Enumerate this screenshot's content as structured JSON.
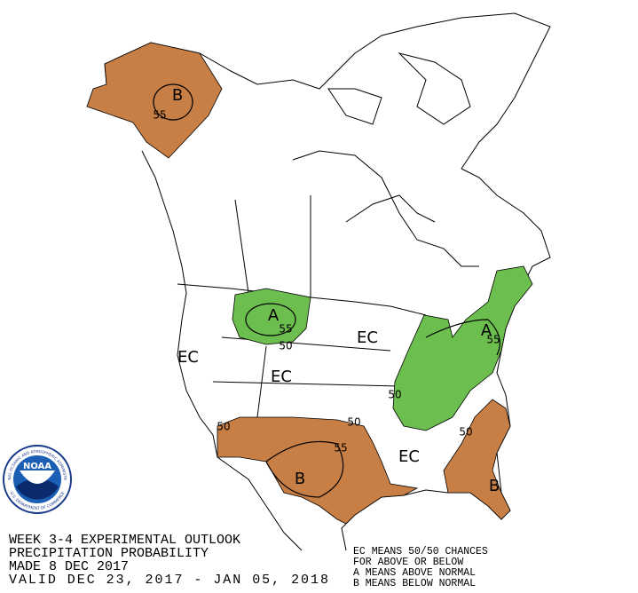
{
  "title_lines": [
    "WEEK 3-4 EXPERIMENTAL OUTLOOK",
    "PRECIPITATION PROBABILITY",
    "MADE  8 DEC 2017",
    "VALID  DEC 23, 2017 - JAN 05, 2018"
  ],
  "legend_lines": [
    "EC MEANS 50/50 CHANCES",
    "FOR ABOVE OR BELOW",
    "A MEANS ABOVE NORMAL",
    "B MEANS BELOW NORMAL"
  ],
  "logo": {
    "text": "NOAA",
    "ring_top": "NATIONAL OCEANIC AND ATMOSPHERIC ADMINISTRATION",
    "ring_bottom": "U.S. DEPARTMENT OF COMMERCE"
  },
  "map_labels": [
    "B",
    55,
    "A",
    55,
    50,
    "EC",
    "EC",
    "EC",
    "A",
    55,
    50,
    50,
    50,
    55,
    "B",
    "EC",
    50,
    "B"
  ]
}
